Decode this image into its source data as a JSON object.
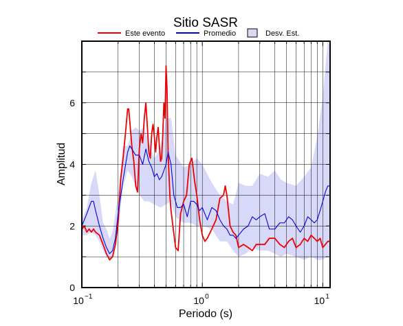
{
  "chart_data": {
    "type": "line",
    "title": "Sitio SASR",
    "xlabel": "Periodo (s)",
    "ylabel": "Amplitud",
    "xscale": "log",
    "xlim": [
      0.1,
      11.5
    ],
    "ylim": [
      0,
      8
    ],
    "x_ticks": [
      {
        "value": 0.1,
        "base": "10",
        "exp": "−1"
      },
      {
        "value": 1,
        "base": "10",
        "exp": "0"
      },
      {
        "value": 10,
        "base": "10",
        "exp": "1"
      }
    ],
    "y_ticks": [
      {
        "value": 0,
        "label": "0"
      },
      {
        "value": 2,
        "label": "2"
      },
      {
        "value": 4,
        "label": "4"
      },
      {
        "value": 6,
        "label": "6"
      }
    ],
    "y_minor_grid": [
      1,
      3,
      5,
      7
    ],
    "grid": true,
    "legend_position": "top-center",
    "legend": [
      {
        "label": "Este evento",
        "kind": "line",
        "color": "#ee0000"
      },
      {
        "label": "Promedio",
        "kind": "line",
        "color": "#0000dd"
      },
      {
        "label": "Desv. Est.",
        "kind": "band",
        "color": "#d8d8f8"
      }
    ],
    "band": {
      "name": "Desv. Est.",
      "color": "#d8d8f8",
      "x": [
        0.1,
        0.11,
        0.12,
        0.13,
        0.14,
        0.15,
        0.16,
        0.17,
        0.18,
        0.2,
        0.22,
        0.24,
        0.26,
        0.28,
        0.3,
        0.33,
        0.36,
        0.4,
        0.45,
        0.5,
        0.55,
        0.6,
        0.7,
        0.8,
        0.9,
        1.0,
        1.2,
        1.4,
        1.6,
        1.8,
        2.0,
        2.3,
        2.6,
        3.0,
        3.5,
        4.0,
        4.5,
        5.0,
        6.0,
        7.0,
        8.0,
        9.0,
        10.0,
        11.0,
        11.5
      ],
      "upper": [
        2.2,
        2.6,
        3.4,
        3.8,
        3.0,
        2.1,
        1.9,
        1.6,
        1.8,
        3.0,
        4.6,
        4.6,
        5.1,
        5.2,
        5.1,
        5.2,
        4.7,
        4.2,
        4.5,
        5.5,
        5.5,
        4.3,
        3.9,
        4.0,
        4.2,
        4.0,
        3.4,
        3.0,
        2.8,
        2.7,
        3.4,
        3.3,
        3.3,
        3.7,
        3.6,
        3.8,
        3.5,
        3.4,
        3.3,
        3.6,
        3.9,
        4.9,
        6.2,
        8.0,
        8.0
      ],
      "lower": [
        1.7,
        1.7,
        1.8,
        1.7,
        1.5,
        1.2,
        1.0,
        0.9,
        1.0,
        1.8,
        3.3,
        3.8,
        3.6,
        3.3,
        3.0,
        2.8,
        2.8,
        2.7,
        2.6,
        2.7,
        2.8,
        2.3,
        2.1,
        2.1,
        2.0,
        2.0,
        1.9,
        1.5,
        1.5,
        1.2,
        1.0,
        1.1,
        1.3,
        1.2,
        1.2,
        1.1,
        1.0,
        1.1,
        1.0,
        0.9,
        1.0,
        0.9,
        0.9,
        1.0,
        1.1
      ]
    },
    "series": [
      {
        "name": "Este evento",
        "color": "#ee0000",
        "x": [
          0.1,
          0.105,
          0.11,
          0.115,
          0.12,
          0.125,
          0.13,
          0.14,
          0.15,
          0.16,
          0.17,
          0.18,
          0.19,
          0.2,
          0.21,
          0.22,
          0.23,
          0.24,
          0.245,
          0.25,
          0.26,
          0.27,
          0.28,
          0.29,
          0.3,
          0.31,
          0.32,
          0.33,
          0.34,
          0.35,
          0.36,
          0.37,
          0.38,
          0.39,
          0.4,
          0.41,
          0.42,
          0.43,
          0.44,
          0.45,
          0.46,
          0.47,
          0.48,
          0.49,
          0.5,
          0.51,
          0.52,
          0.53,
          0.54,
          0.55,
          0.57,
          0.6,
          0.63,
          0.66,
          0.7,
          0.74,
          0.78,
          0.82,
          0.86,
          0.9,
          0.95,
          1.0,
          1.05,
          1.1,
          1.2,
          1.3,
          1.4,
          1.5,
          1.55,
          1.6,
          1.7,
          1.8,
          1.9,
          2.0,
          2.2,
          2.4,
          2.6,
          2.8,
          3.0,
          3.3,
          3.6,
          4.0,
          4.4,
          4.8,
          5.2,
          5.6,
          6.0,
          6.5,
          7.0,
          7.5,
          8.0,
          8.5,
          9.0,
          9.5,
          10.0,
          10.5,
          11.0,
          11.5
        ],
        "y": [
          1.9,
          2.0,
          1.8,
          1.9,
          1.8,
          1.9,
          1.8,
          1.7,
          1.4,
          1.1,
          0.9,
          1.0,
          1.4,
          2.1,
          3.5,
          4.2,
          5.0,
          5.8,
          5.8,
          5.4,
          4.6,
          4.1,
          3.3,
          3.1,
          4.5,
          5.0,
          4.7,
          5.5,
          6.0,
          5.2,
          4.4,
          4.2,
          5.0,
          5.3,
          4.9,
          4.4,
          4.9,
          5.2,
          4.6,
          4.1,
          4.2,
          5.0,
          6.0,
          5.5,
          7.2,
          6.4,
          4.4,
          3.6,
          2.9,
          2.5,
          2.0,
          1.3,
          1.2,
          2.4,
          2.8,
          3.0,
          4.0,
          4.2,
          3.5,
          3.0,
          2.2,
          1.7,
          1.5,
          1.6,
          1.9,
          2.2,
          2.9,
          3.0,
          3.3,
          3.0,
          2.0,
          1.8,
          1.7,
          1.3,
          1.4,
          1.3,
          1.2,
          1.4,
          1.4,
          1.4,
          1.6,
          1.6,
          1.4,
          1.3,
          1.5,
          1.6,
          1.3,
          1.4,
          1.6,
          1.5,
          1.7,
          1.6,
          1.5,
          1.6,
          1.3,
          1.4,
          1.5,
          1.5
        ]
      },
      {
        "name": "Promedio",
        "color": "#0000dd",
        "x": [
          0.1,
          0.11,
          0.12,
          0.125,
          0.13,
          0.14,
          0.15,
          0.16,
          0.17,
          0.18,
          0.19,
          0.2,
          0.22,
          0.24,
          0.25,
          0.26,
          0.28,
          0.3,
          0.32,
          0.34,
          0.36,
          0.38,
          0.4,
          0.42,
          0.44,
          0.46,
          0.48,
          0.5,
          0.52,
          0.55,
          0.58,
          0.62,
          0.66,
          0.7,
          0.75,
          0.8,
          0.85,
          0.9,
          0.95,
          1.0,
          1.1,
          1.2,
          1.3,
          1.4,
          1.5,
          1.6,
          1.7,
          1.8,
          1.9,
          2.0,
          2.2,
          2.4,
          2.6,
          2.8,
          3.0,
          3.3,
          3.6,
          4.0,
          4.4,
          4.8,
          5.2,
          5.6,
          6.0,
          6.5,
          7.0,
          7.5,
          8.0,
          8.5,
          9.0,
          9.5,
          10.0,
          10.5,
          11.0,
          11.5
        ],
        "y": [
          2.0,
          2.4,
          2.8,
          2.8,
          2.5,
          2.0,
          1.6,
          1.3,
          1.1,
          1.2,
          1.6,
          2.4,
          3.5,
          4.4,
          4.6,
          4.5,
          4.3,
          4.3,
          4.0,
          4.5,
          4.1,
          3.9,
          3.6,
          3.7,
          3.5,
          3.6,
          3.8,
          4.0,
          4.4,
          4.0,
          3.0,
          2.6,
          2.6,
          2.7,
          2.3,
          2.8,
          2.8,
          2.7,
          2.5,
          2.6,
          2.2,
          2.6,
          2.5,
          2.2,
          2.0,
          1.9,
          1.7,
          1.7,
          1.6,
          1.7,
          1.9,
          2.0,
          2.3,
          2.2,
          2.3,
          2.4,
          1.9,
          1.9,
          2.1,
          2.1,
          2.3,
          2.2,
          2.0,
          1.8,
          2.0,
          2.3,
          2.2,
          2.1,
          2.2,
          2.5,
          2.8,
          3.1,
          3.3,
          3.3
        ]
      }
    ]
  }
}
